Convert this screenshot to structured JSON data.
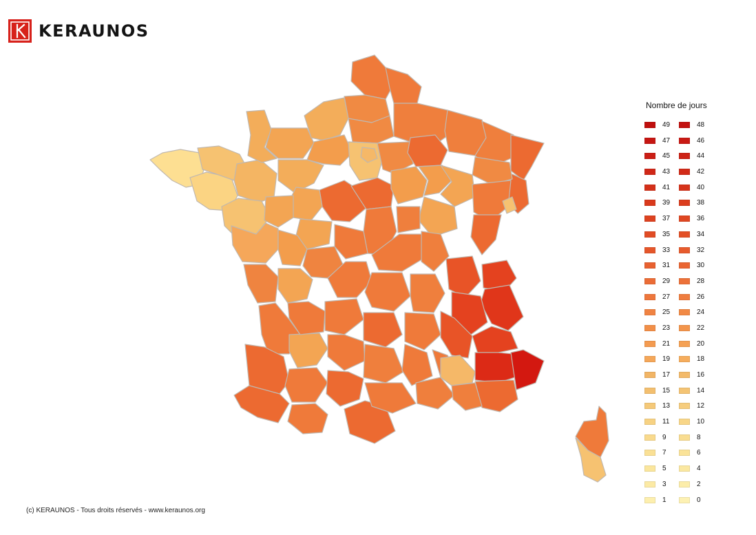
{
  "brand": {
    "name": "KERAUNOS",
    "logo_color": "#d7211b"
  },
  "legend": {
    "title": "Nombre de jours",
    "items": [
      {
        "value": "49",
        "color": "#c00f0d"
      },
      {
        "value": "48",
        "color": "#c31210"
      },
      {
        "value": "47",
        "color": "#c61612"
      },
      {
        "value": "46",
        "color": "#c91a14"
      },
      {
        "value": "45",
        "color": "#cb1e15"
      },
      {
        "value": "44",
        "color": "#cd2216"
      },
      {
        "value": "43",
        "color": "#d02717"
      },
      {
        "value": "42",
        "color": "#d22b18"
      },
      {
        "value": "41",
        "color": "#d43019"
      },
      {
        "value": "40",
        "color": "#d6341b"
      },
      {
        "value": "39",
        "color": "#d9391c"
      },
      {
        "value": "38",
        "color": "#db3d1e"
      },
      {
        "value": "37",
        "color": "#dd4220"
      },
      {
        "value": "36",
        "color": "#df4722"
      },
      {
        "value": "35",
        "color": "#e14c24"
      },
      {
        "value": "34",
        "color": "#e35127"
      },
      {
        "value": "33",
        "color": "#e5562a"
      },
      {
        "value": "32",
        "color": "#e75b2d"
      },
      {
        "value": "31",
        "color": "#e86130"
      },
      {
        "value": "30",
        "color": "#ea6633"
      },
      {
        "value": "29",
        "color": "#eb6c36"
      },
      {
        "value": "28",
        "color": "#ec7139"
      },
      {
        "value": "27",
        "color": "#ee773c"
      },
      {
        "value": "26",
        "color": "#ef7d3f"
      },
      {
        "value": "25",
        "color": "#f08342"
      },
      {
        "value": "24",
        "color": "#f18945"
      },
      {
        "value": "23",
        "color": "#f28f48"
      },
      {
        "value": "22",
        "color": "#f3954c"
      },
      {
        "value": "21",
        "color": "#f49b50"
      },
      {
        "value": "20",
        "color": "#f5a154"
      },
      {
        "value": "19",
        "color": "#f5a759"
      },
      {
        "value": "18",
        "color": "#f6ad5d"
      },
      {
        "value": "17",
        "color": "#f2b565"
      },
      {
        "value": "16",
        "color": "#f3ba6a"
      },
      {
        "value": "15",
        "color": "#f3bf6f"
      },
      {
        "value": "14",
        "color": "#f4c474"
      },
      {
        "value": "13",
        "color": "#f5c979"
      },
      {
        "value": "12",
        "color": "#f6cd7e"
      },
      {
        "value": "11",
        "color": "#f7d283"
      },
      {
        "value": "10",
        "color": "#f8d688"
      },
      {
        "value": "9",
        "color": "#f9da8d"
      },
      {
        "value": "8",
        "color": "#f9dd91"
      },
      {
        "value": "7",
        "color": "#fae095"
      },
      {
        "value": "6",
        "color": "#fae399"
      },
      {
        "value": "5",
        "color": "#fbe69d"
      },
      {
        "value": "4",
        "color": "#fbe8a1"
      },
      {
        "value": "3",
        "color": "#fceaa5"
      },
      {
        "value": "2",
        "color": "#fcedaa"
      },
      {
        "value": "1",
        "color": "#fdefae"
      },
      {
        "value": "0",
        "color": "#fdf1b3"
      }
    ]
  },
  "footer": {
    "copyright": "(c) KERAUNOS - Tous droits réservés - www.keraunos.org"
  }
}
